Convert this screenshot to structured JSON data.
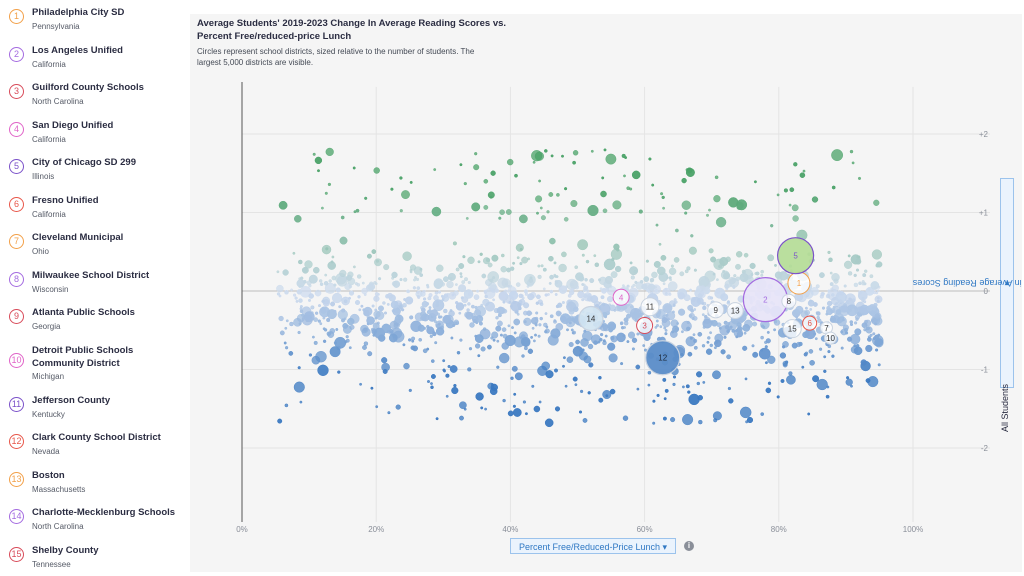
{
  "districts": [
    {
      "n": "1",
      "name": "Philadelphia City SD",
      "state": "Pennsylvania",
      "color": "#f2a049"
    },
    {
      "n": "2",
      "name": "Los Angeles Unified",
      "state": "California",
      "color": "#a46be0"
    },
    {
      "n": "3",
      "name": "Guilford County Schools",
      "state": "North Carolina",
      "color": "#d84b5a"
    },
    {
      "n": "4",
      "name": "San Diego Unified",
      "state": "California",
      "color": "#e064c8"
    },
    {
      "n": "5",
      "name": "City of Chicago SD 299",
      "state": "Illinois",
      "color": "#7b52c9"
    },
    {
      "n": "6",
      "name": "Fresno Unified",
      "state": "California",
      "color": "#e8574a"
    },
    {
      "n": "7",
      "name": "Cleveland Municipal",
      "state": "Ohio",
      "color": "#f2a049"
    },
    {
      "n": "8",
      "name": "Milwaukee School District",
      "state": "Wisconsin",
      "color": "#a46be0"
    },
    {
      "n": "9",
      "name": "Atlanta Public Schools",
      "state": "Georgia",
      "color": "#d84b5a"
    },
    {
      "n": "10",
      "name": "Detroit Public Schools Community District",
      "state": "Michigan",
      "color": "#e064c8"
    },
    {
      "n": "11",
      "name": "Jefferson County",
      "state": "Kentucky",
      "color": "#7b52c9"
    },
    {
      "n": "12",
      "name": "Clark County School District",
      "state": "Nevada",
      "color": "#e8574a"
    },
    {
      "n": "13",
      "name": "Boston",
      "state": "Massachusetts",
      "color": "#f2a049"
    },
    {
      "n": "14",
      "name": "Charlotte-Mecklenburg Schools",
      "state": "North Carolina",
      "color": "#a46be0"
    },
    {
      "n": "15",
      "name": "Shelby County",
      "state": "Tennessee",
      "color": "#d84b5a"
    }
  ],
  "header": {
    "title": "Average Students' 2019-2023 Change In Average Reading Scores vs. Percent Free/reduced-price Lunch",
    "subtitle": "Circles represent school districts, sized relative to the number of students. The largest 5,000 districts are visible."
  },
  "controls": {
    "x_select": "Percent Free/Reduced-Price Lunch",
    "y_select": "2019-2023 Change in Average Reading Scores",
    "y_group": "All Students",
    "dropdown_glyph": "▾",
    "info_glyph": "i"
  },
  "chart_data": {
    "type": "scatter",
    "title": "Average Students' 2019-2023 Change In Average Reading Scores vs. Percent Free/reduced-price Lunch",
    "xlabel": "Percent Free/Reduced-Price Lunch",
    "ylabel": "2019-2023 Change in Average Reading Scores",
    "xlim": [
      0,
      1
    ],
    "ylim": [
      -2.9,
      2.6
    ],
    "x_ticks": [
      {
        "value": 0,
        "label": "0%"
      },
      {
        "value": 0.2,
        "label": "20%"
      },
      {
        "value": 0.4,
        "label": "40%"
      },
      {
        "value": 0.6,
        "label": "60%"
      },
      {
        "value": 0.8,
        "label": "80%"
      },
      {
        "value": 1,
        "label": "100%"
      }
    ],
    "y_ticks": [
      {
        "value": 2,
        "label": "+2"
      },
      {
        "value": 1,
        "label": "+1"
      },
      {
        "value": 0,
        "label": "0"
      },
      {
        "value": -1,
        "label": "-1"
      },
      {
        "value": -2,
        "label": "-2"
      }
    ],
    "grid": true,
    "color_scale": {
      "low": "#3a78c0",
      "mid": "#cfdcef",
      "high": "#4aa267"
    },
    "highlighted": [
      {
        "n": "1",
        "x": 0.83,
        "y": 0.1,
        "size": 11
      },
      {
        "n": "2",
        "x": 0.78,
        "y": -0.11,
        "size": 22
      },
      {
        "n": "3",
        "x": 0.6,
        "y": -0.44,
        "size": 8
      },
      {
        "n": "4",
        "x": 0.565,
        "y": -0.08,
        "size": 8
      },
      {
        "n": "5",
        "x": 0.825,
        "y": 0.45,
        "size": 18
      },
      {
        "n": "6",
        "x": 0.846,
        "y": -0.41,
        "size": 7
      },
      {
        "n": "7",
        "x": 0.871,
        "y": -0.47,
        "size": 6
      },
      {
        "n": "8",
        "x": 0.815,
        "y": -0.13,
        "size": 7
      },
      {
        "n": "9",
        "x": 0.706,
        "y": -0.24,
        "size": 8
      },
      {
        "n": "10",
        "x": 0.877,
        "y": -0.6,
        "size": 6
      },
      {
        "n": "11",
        "x": 0.608,
        "y": -0.2,
        "size": 9
      },
      {
        "n": "12",
        "x": 0.627,
        "y": -0.85,
        "size": 17
      },
      {
        "n": "13",
        "x": 0.735,
        "y": -0.25,
        "size": 8
      },
      {
        "n": "14",
        "x": 0.52,
        "y": -0.35,
        "size": 12
      },
      {
        "n": "15",
        "x": 0.82,
        "y": -0.48,
        "size": 9
      }
    ],
    "background_districts": "approximately 5,000 districts, most between 0 and -1 change; density highest near 50-85% FRL"
  }
}
